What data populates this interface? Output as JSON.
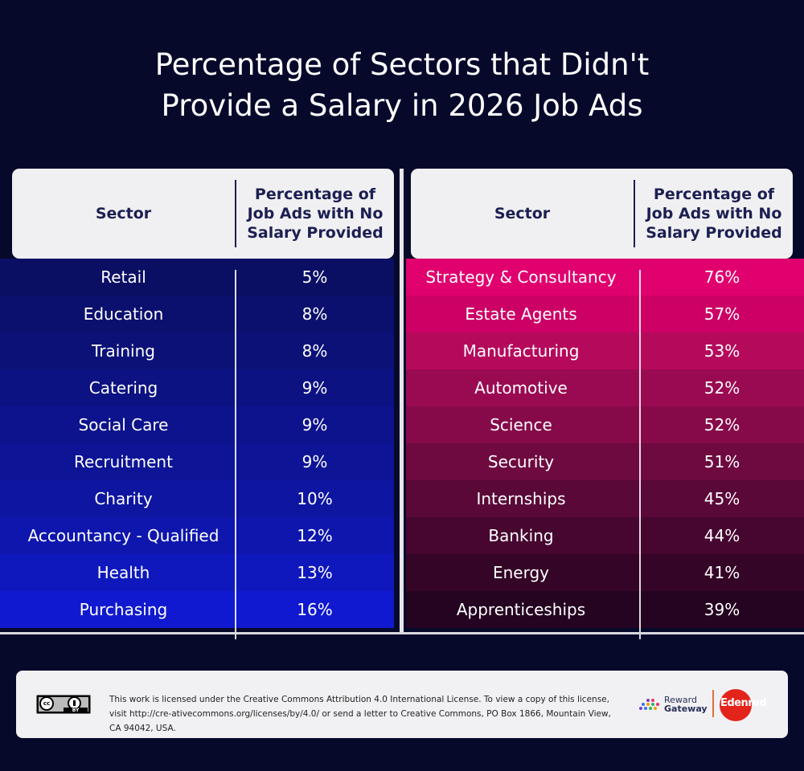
{
  "chart_data": {
    "type": "table",
    "title": "Percentage of Sectors that Didn't Provide a Salary in 2026 Job Ads",
    "columns": [
      "Sector",
      "Percentage of Job Ads with No Salary Provided"
    ],
    "tables": [
      {
        "name": "lowest",
        "rows": [
          {
            "sector": "Retail",
            "value": "5%"
          },
          {
            "sector": "Education",
            "value": "8%"
          },
          {
            "sector": "Training",
            "value": "8%"
          },
          {
            "sector": "Catering",
            "value": "9%"
          },
          {
            "sector": "Social Care",
            "value": "9%"
          },
          {
            "sector": "Recruitment",
            "value": "9%"
          },
          {
            "sector": "Charity",
            "value": "10%"
          },
          {
            "sector": "Accountancy - Qualified",
            "value": "12%"
          },
          {
            "sector": "Health",
            "value": "13%"
          },
          {
            "sector": "Purchasing",
            "value": "16%"
          }
        ]
      },
      {
        "name": "highest",
        "rows": [
          {
            "sector": "Strategy & Consultancy",
            "value": "76%"
          },
          {
            "sector": "Estate Agents",
            "value": "57%"
          },
          {
            "sector": "Manufacturing",
            "value": "53%"
          },
          {
            "sector": "Automotive",
            "value": "52%"
          },
          {
            "sector": "Science",
            "value": "52%"
          },
          {
            "sector": "Security",
            "value": "51%"
          },
          {
            "sector": "Internships",
            "value": "45%"
          },
          {
            "sector": "Banking",
            "value": "44%"
          },
          {
            "sector": "Energy",
            "value": "41%"
          },
          {
            "sector": "Apprenticeships",
            "value": "39%"
          }
        ]
      }
    ]
  },
  "header": {
    "title_line1": "Percentage of Sectors that Didn't",
    "title_line2": "Provide a Salary in 2026 Job Ads",
    "col_sector": "Sector",
    "col_pct": "Percentage of\nJob Ads with No\nSalary Provided"
  },
  "colors": {
    "background": "#07092b",
    "left_rows": [
      "#0b0f64",
      "#0b106e",
      "#0c1178",
      "#0c1282",
      "#0d138c",
      "#0d1496",
      "#0e15a0",
      "#0e16ad",
      "#0f18bc",
      "#1019cf"
    ],
    "right_rows": [
      "#e0006e",
      "#cc0065",
      "#b50a5c",
      "#9a0a52",
      "#860a49",
      "#6e0a40",
      "#5a0838",
      "#460630",
      "#340526",
      "#240420"
    ]
  },
  "footer": {
    "license_text": "This work is licensed under the Creative Commons Attribution 4.0 International License. To view a copy of this license, visit http://cre-ativecommons.org/licenses/by/4.0/ or send a letter to Creative Commons, PO Box 1866, Mountain View, CA 94042, USA.",
    "cc_label": "cc",
    "by_label": "BY",
    "rg_line1": "Reward",
    "rg_line2": "Gateway",
    "edenred": "Edenred"
  }
}
